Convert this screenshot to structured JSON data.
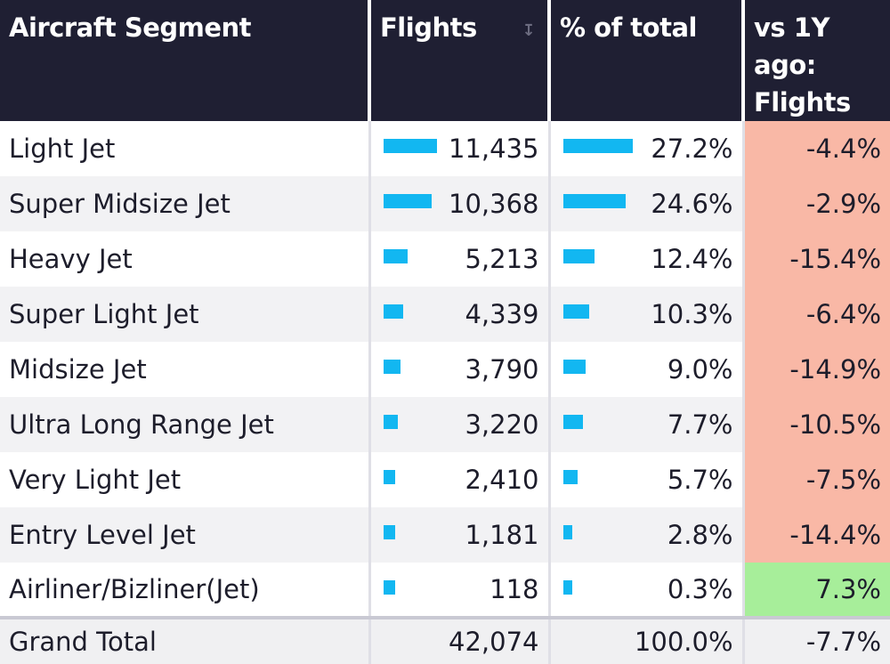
{
  "headers": {
    "segment": "Aircraft Segment",
    "flights": "Flights",
    "pct": "% of total",
    "yoy": "vs 1Y ago: Flights"
  },
  "chart_data": {
    "type": "table",
    "columns": [
      "Aircraft Segment",
      "Flights",
      "% of total",
      "vs 1Y ago: Flights"
    ],
    "rows": [
      {
        "segment": "Light Jet",
        "flights": 11435,
        "flights_text": "11,435",
        "pct": 27.2,
        "pct_text": "27.2%",
        "yoy": -4.4,
        "yoy_text": "-4.4%"
      },
      {
        "segment": "Super Midsize Jet",
        "flights": 10368,
        "flights_text": "10,368",
        "pct": 24.6,
        "pct_text": "24.6%",
        "yoy": -2.9,
        "yoy_text": "-2.9%"
      },
      {
        "segment": "Heavy Jet",
        "flights": 5213,
        "flights_text": "5,213",
        "pct": 12.4,
        "pct_text": "12.4%",
        "yoy": -15.4,
        "yoy_text": "-15.4%"
      },
      {
        "segment": "Super Light Jet",
        "flights": 4339,
        "flights_text": "4,339",
        "pct": 10.3,
        "pct_text": "10.3%",
        "yoy": -6.4,
        "yoy_text": "-6.4%"
      },
      {
        "segment": "Midsize Jet",
        "flights": 3790,
        "flights_text": "3,790",
        "pct": 9.0,
        "pct_text": "9.0%",
        "yoy": -14.9,
        "yoy_text": "-14.9%"
      },
      {
        "segment": "Ultra Long Range Jet",
        "flights": 3220,
        "flights_text": "3,220",
        "pct": 7.7,
        "pct_text": "7.7%",
        "yoy": -10.5,
        "yoy_text": "-10.5%"
      },
      {
        "segment": "Very Light Jet",
        "flights": 2410,
        "flights_text": "2,410",
        "pct": 5.7,
        "pct_text": "5.7%",
        "yoy": -7.5,
        "yoy_text": "-7.5%"
      },
      {
        "segment": "Entry Level Jet",
        "flights": 1181,
        "flights_text": "1,181",
        "pct": 2.8,
        "pct_text": "2.8%",
        "yoy": -14.4,
        "yoy_text": "-14.4%"
      },
      {
        "segment": "Airliner/Bizliner(Jet)",
        "flights": 118,
        "flights_text": "118",
        "pct": 0.3,
        "pct_text": "0.3%",
        "yoy": 7.3,
        "yoy_text": "7.3%"
      }
    ],
    "total": {
      "segment": "Grand Total",
      "flights": 42074,
      "flights_text": "42,074",
      "pct": 100.0,
      "pct_text": "100.0%",
      "yoy": -7.7,
      "yoy_text": "-7.7%"
    }
  },
  "colors": {
    "header_bg": "#1f1f33",
    "bar": "#12b7f1",
    "negative": "#f9b8a6",
    "positive": "#a7ee9a"
  },
  "icons": {
    "sort": "sort-descending-icon"
  }
}
